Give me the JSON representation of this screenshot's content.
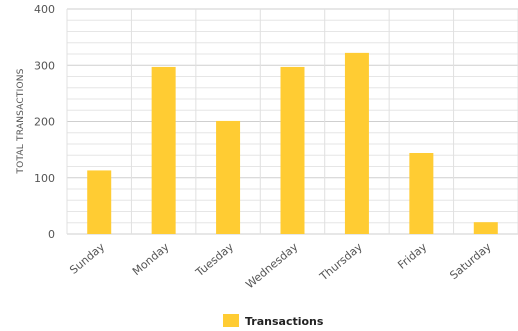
{
  "chart_data": {
    "type": "bar",
    "categories": [
      "Sunday",
      "Monday",
      "Tuesday",
      "Wednesday",
      "Thursday",
      "Friday",
      "Saturday"
    ],
    "series": [
      {
        "name": "Transactions",
        "values": [
          113,
          297,
          201,
          297,
          322,
          144,
          21
        ]
      }
    ],
    "title": "",
    "xlabel": "",
    "ylabel": "TOTAL TRANSACTIONS",
    "ylim": [
      0,
      400
    ],
    "yticks": [
      0,
      100,
      200,
      300,
      400
    ],
    "grid": true,
    "legend_position": "bottom",
    "colors": {
      "bar": "#FFCC33",
      "grid": "#d9d9d9",
      "axis_text": "#555555"
    }
  }
}
